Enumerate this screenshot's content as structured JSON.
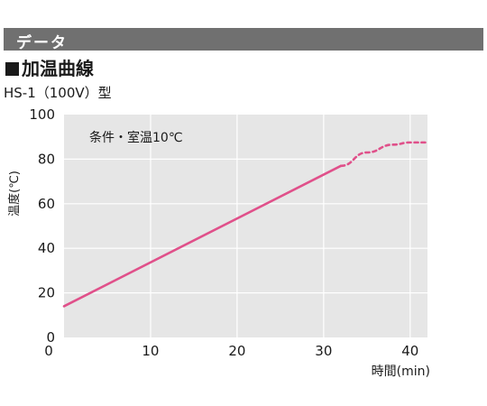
{
  "header": {
    "label": "データ"
  },
  "section": {
    "title": "加温曲線"
  },
  "model": "HS-1（100V）型",
  "chart_data": {
    "type": "line",
    "annotation": "条件・室温10℃",
    "xlabel": "時間(min)",
    "ylabel": "温度(℃)",
    "xlim": [
      0,
      42
    ],
    "ylim": [
      0,
      100
    ],
    "x_ticks": [
      0,
      10,
      20,
      30,
      40
    ],
    "y_ticks": [
      0,
      20,
      40,
      60,
      80,
      100
    ],
    "grid": true,
    "line_color": "#e0508a",
    "series": [
      {
        "style": "solid",
        "x": [
          0,
          32
        ],
        "y": [
          14,
          77
        ]
      },
      {
        "style": "dashed",
        "x": [
          32,
          35,
          38,
          40,
          42
        ],
        "y": [
          77,
          83,
          86.5,
          87.5,
          87.5
        ]
      }
    ]
  }
}
